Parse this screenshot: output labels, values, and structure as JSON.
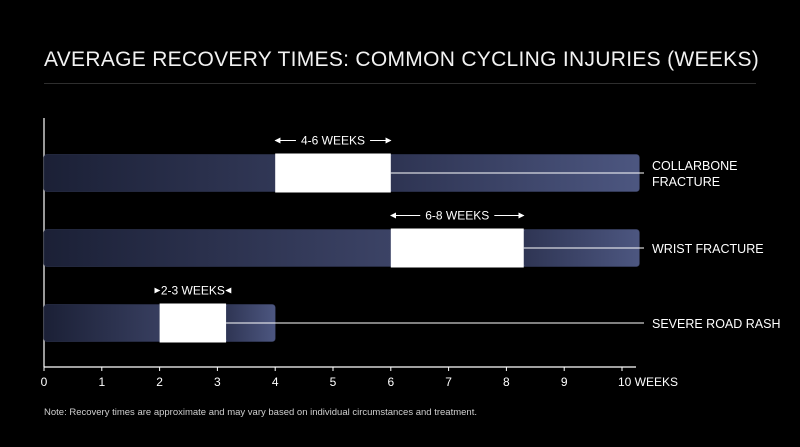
{
  "title": "AVERAGE RECOVERY TIMES: COMMON CYCLING INJURIES (WEEKS)",
  "note": "Note: Recovery times are approximate and may vary based on individual circumstances and treatment.",
  "colors": {
    "background": "#000000",
    "bar_dark": "#1b2036",
    "bar_light": "#4a5277",
    "highlight": "#ffffff",
    "text": "#ffffff"
  },
  "chart_data": {
    "type": "bar",
    "orientation": "horizontal",
    "xlim": [
      0,
      10
    ],
    "xticks": [
      "0",
      "1",
      "2",
      "3",
      "4",
      "5",
      "6",
      "7",
      "8",
      "9",
      "10 WEEKS"
    ],
    "grid": false,
    "bars": [
      {
        "category": [
          "COLLARBONE",
          "FRACTURE"
        ],
        "bar_end": 10.3,
        "range": [
          4,
          6
        ],
        "range_label": "4-6 WEEKS"
      },
      {
        "category": [
          "WRIST FRACTURE"
        ],
        "bar_end": 10.3,
        "range": [
          6,
          8.3
        ],
        "range_label": "6-8 WEEKS"
      },
      {
        "category": [
          "SEVERE ROAD RASH"
        ],
        "bar_end": 4,
        "range": [
          2,
          3.15
        ],
        "range_label": "2-3 WEEKS"
      }
    ]
  }
}
